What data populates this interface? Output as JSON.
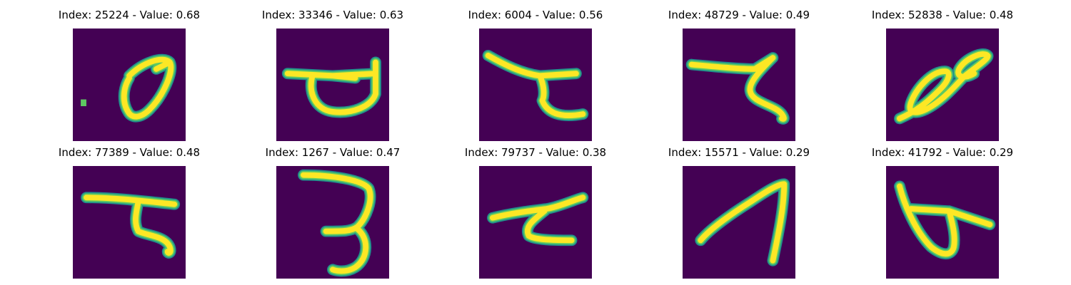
{
  "colors": {
    "background": "#440154",
    "stroke_mid": "#21918c",
    "stroke_high": "#5ec962",
    "stroke_peak": "#fde725"
  },
  "panels": [
    {
      "title": "Index: 25224 - Value: 0.68",
      "index": 25224,
      "value": 0.68,
      "image": "handwritten-glyph-loop"
    },
    {
      "title": "Index: 33346 - Value: 0.63",
      "index": 33346,
      "value": 0.63,
      "image": "handwritten-glyph-bar-loop"
    },
    {
      "title": "Index: 6004 - Value: 0.56",
      "index": 6004,
      "value": 0.56,
      "image": "handwritten-glyph-zigzag"
    },
    {
      "title": "Index: 48729 - Value: 0.49",
      "index": 48729,
      "value": 0.49,
      "image": "handwritten-glyph-zigzag"
    },
    {
      "title": "Index: 52838 - Value: 0.48",
      "index": 52838,
      "value": 0.48,
      "image": "handwritten-glyph-double-loop"
    },
    {
      "title": "Index: 77389 - Value: 0.48",
      "index": 77389,
      "value": 0.48,
      "image": "handwritten-glyph-zigzag"
    },
    {
      "title": "Index: 1267 - Value: 0.47",
      "index": 1267,
      "value": 0.47,
      "image": "handwritten-glyph-three"
    },
    {
      "title": "Index: 79737 - Value: 0.38",
      "index": 79737,
      "value": 0.38,
      "image": "handwritten-glyph-zigzag"
    },
    {
      "title": "Index: 15571 - Value: 0.29",
      "index": 15571,
      "value": 0.29,
      "image": "handwritten-glyph-peak"
    },
    {
      "title": "Index: 41792 - Value: 0.29",
      "index": 41792,
      "value": 0.29,
      "image": "handwritten-glyph-loop-bar"
    }
  ]
}
